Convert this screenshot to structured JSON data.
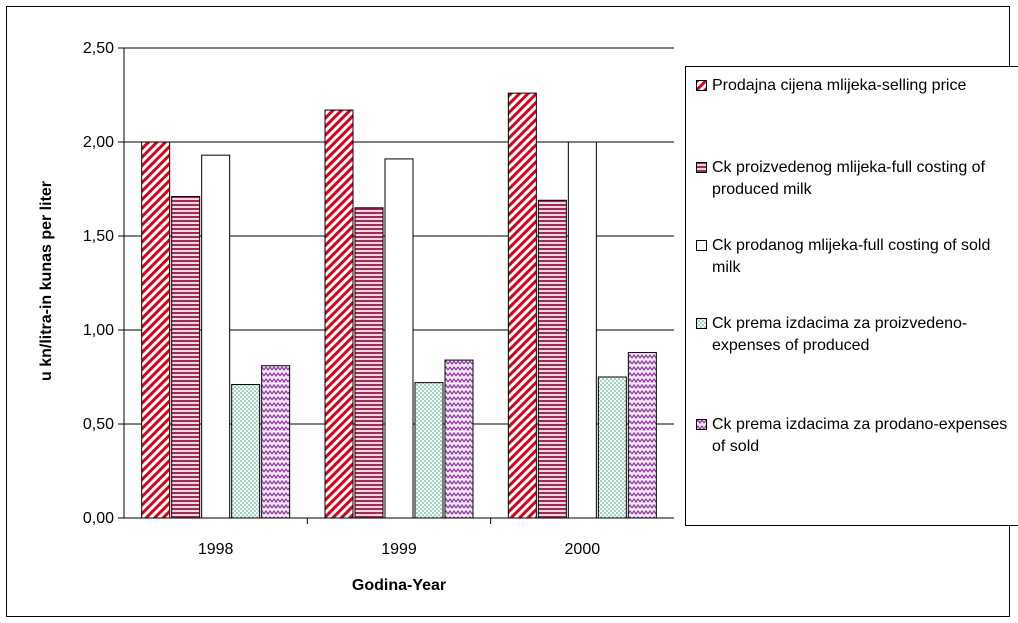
{
  "chart_data": {
    "type": "bar",
    "ylabel": "u kn/litra-in kunas per liter",
    "xlabel": "Godina-Year",
    "categories": [
      "1998",
      "1999",
      "2000"
    ],
    "ylim": [
      0,
      2.5
    ],
    "yticks": [
      "0,00",
      "0,50",
      "1,00",
      "1,50",
      "2,00",
      "2,50"
    ],
    "grid": true,
    "legend_position": "right",
    "series": [
      {
        "name": "Prodajna cijena mlijeka-selling price",
        "values": [
          2.0,
          2.17,
          2.26
        ],
        "color": "#d9001b",
        "pattern": "diagonal-stripes"
      },
      {
        "name": "Ck proizvedenog mlijeka-full costing of produced milk",
        "values": [
          1.71,
          1.65,
          1.69
        ],
        "color": "#9e2a5a",
        "pattern": "horizontal-stripes"
      },
      {
        "name": "Ck prodanog mlijeka-full costing of sold milk",
        "values": [
          1.93,
          1.91,
          2.0
        ],
        "color": "#ffffff",
        "pattern": "solid"
      },
      {
        "name": "Ck prema izdacima za proizvedeno-expenses of produced",
        "values": [
          0.71,
          0.72,
          0.75
        ],
        "color": "#4f9f8f",
        "pattern": "dots"
      },
      {
        "name": "Ck prema izdacima za prodano-expenses of sold",
        "values": [
          0.81,
          0.84,
          0.88
        ],
        "color": "#8e3aa0",
        "pattern": "zigzag"
      }
    ]
  }
}
